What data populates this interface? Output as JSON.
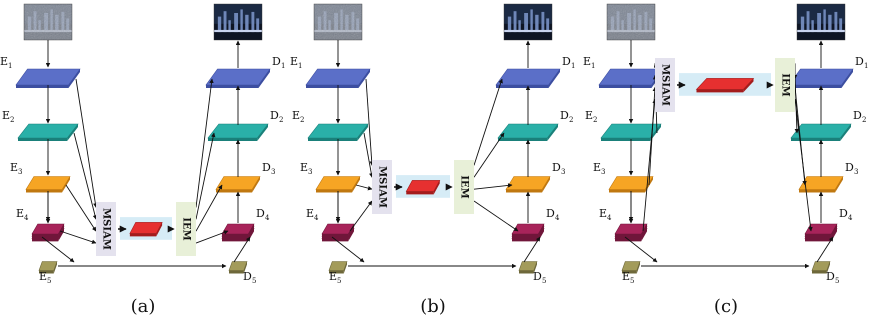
{
  "colors": {
    "l1": "#5b6fc8",
    "l1_side": "#3c4ea0",
    "l2": "#2ab0a8",
    "l2_side": "#1a807a",
    "l3": "#f6a524",
    "l3_side": "#c07810",
    "l4": "#a8245a",
    "l4_side": "#70163a",
    "l5": "#a39b5a",
    "l5_side": "#6e683a",
    "mid": "#e63030",
    "mid_side": "#a41c1c",
    "msiam_bg": "#e4e2ee",
    "iem_bg": "#e8f0d8",
    "panel_bg": "#d6ecf6",
    "arrow": "#111111"
  },
  "panels": [
    {
      "caption": "(a)",
      "enc": [
        "E",
        "E",
        "E",
        "E",
        "E"
      ],
      "dec": [
        "D",
        "D",
        "D",
        "D",
        "D"
      ],
      "idx": [
        "1",
        "2",
        "3",
        "4",
        "5"
      ],
      "msiam": "MSIAM",
      "iem": "IEM",
      "input_icon": "noisy-night-city-image",
      "output_icon": "clean-night-city-image"
    },
    {
      "caption": "(b)",
      "enc": [
        "E",
        "E",
        "E",
        "E",
        "E"
      ],
      "dec": [
        "D",
        "D",
        "D",
        "D",
        "D"
      ],
      "idx": [
        "1",
        "2",
        "3",
        "4",
        "5"
      ],
      "msiam": "MSIAM",
      "iem": "IEM",
      "input_icon": "noisy-night-city-image",
      "output_icon": "clean-night-city-image"
    },
    {
      "caption": "(c)",
      "enc": [
        "E",
        "E",
        "E",
        "E",
        "E"
      ],
      "dec": [
        "D",
        "D",
        "D",
        "D",
        "D"
      ],
      "idx": [
        "1",
        "2",
        "3",
        "4",
        "5"
      ],
      "msiam": "MSIAM",
      "iem": "IEM",
      "input_icon": "noisy-night-city-image",
      "output_icon": "clean-night-city-image"
    }
  ]
}
